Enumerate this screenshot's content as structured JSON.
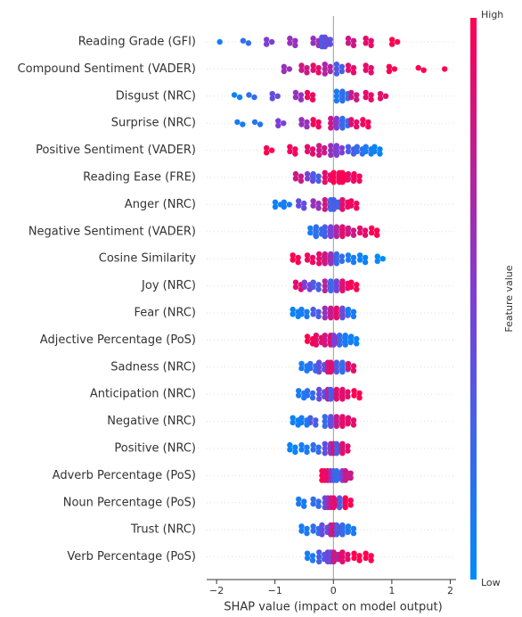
{
  "chart_data": {
    "type": "beeswarm",
    "xlabel": "SHAP value (impact on model output)",
    "colorbar_label": "Feature value",
    "colorbar_high": "High",
    "colorbar_low": "Low",
    "low_color": "#008bfb",
    "mid_color": "#7c3fd6",
    "high_color": "#ff0051",
    "xlim": [
      -2.17,
      2.1
    ],
    "xticks": [
      {
        "value": -2,
        "label": "−2"
      },
      {
        "value": -1,
        "label": "−1"
      },
      0,
      1,
      2
    ],
    "series": [
      {
        "name": "Reading Grade (GFI)",
        "values": [
          -1.9,
          -1.5,
          -1.1,
          -0.7,
          -0.3,
          -0.15,
          -0.1,
          0.3,
          0.6,
          1.05
        ],
        "color_values": [
          0.1,
          0.2,
          0.5,
          0.6,
          0.6,
          0.3,
          0.4,
          0.8,
          0.9,
          1
        ]
      },
      {
        "name": "Compound Sentiment (VADER)",
        "values": [
          -0.8,
          -0.5,
          -0.3,
          -0.1,
          0.1,
          0.3,
          0.6,
          1.0,
          1.5,
          1.95
        ],
        "color_values": [
          0.6,
          0.8,
          0.9,
          0.7,
          0.3,
          0.9,
          0.9,
          1,
          1,
          1
        ]
      },
      {
        "name": "Disgust (NRC)",
        "values": [
          -1.65,
          -1.4,
          -1.0,
          -0.6,
          -0.4,
          0.1,
          0.2,
          0.35,
          0.6,
          0.85
        ],
        "color_values": [
          0.05,
          0.2,
          0.4,
          0.6,
          0.95,
          0.1,
          0.2,
          0.8,
          0.9,
          0.9
        ]
      },
      {
        "name": "Surprise (NRC)",
        "values": [
          -1.6,
          -1.3,
          -0.9,
          -0.5,
          -0.3,
          0.0,
          0.1,
          0.2,
          0.35,
          0.55
        ],
        "color_values": [
          0.1,
          0.15,
          0.5,
          0.6,
          0.95,
          0.8,
          0.5,
          0.2,
          0.9,
          0.95
        ]
      },
      {
        "name": "Positive Sentiment (VADER)",
        "values": [
          -1.1,
          -0.7,
          -0.4,
          -0.2,
          0,
          0.1,
          0.3,
          0.45,
          0.6,
          0.75
        ],
        "color_values": [
          1,
          0.95,
          0.9,
          0.8,
          0.6,
          0.5,
          0.3,
          0.2,
          0.1,
          0.05
        ]
      },
      {
        "name": "Reading Ease (FRE)",
        "values": [
          -0.6,
          -0.4,
          -0.3,
          -0.1,
          0.05,
          0.15,
          0.2,
          0.3,
          0.4
        ],
        "color_values": [
          0.8,
          0.5,
          0.3,
          0.9,
          1,
          0.95,
          1,
          0.9,
          0.95
        ]
      },
      {
        "name": "Anger (NRC)",
        "values": [
          -0.95,
          -0.8,
          -0.55,
          -0.3,
          -0.1,
          0,
          0.05,
          0.2,
          0.35
        ],
        "color_values": [
          0.05,
          0.1,
          0.4,
          0.6,
          0.8,
          0.2,
          0.3,
          0.9,
          0.95
        ]
      },
      {
        "name": "Negative Sentiment (VADER)",
        "values": [
          -0.35,
          -0.25,
          -0.1,
          0,
          0.1,
          0.2,
          0.3,
          0.5,
          0.7
        ],
        "color_values": [
          0.1,
          0.2,
          0.3,
          0.5,
          0.7,
          0.9,
          0.8,
          0.9,
          1
        ]
      },
      {
        "name": "Cosine Similarity",
        "values": [
          -0.65,
          -0.4,
          -0.2,
          -0.1,
          0,
          0.1,
          0.3,
          0.5,
          0.8
        ],
        "color_values": [
          1,
          0.95,
          0.9,
          0.8,
          0.6,
          0.2,
          0.1,
          0.05,
          0
        ]
      },
      {
        "name": "Joy (NRC)",
        "values": [
          -0.6,
          -0.45,
          -0.3,
          -0.1,
          0,
          0.1,
          0.2,
          0.35
        ],
        "color_values": [
          0.9,
          0.5,
          0.3,
          0.7,
          0.2,
          0.5,
          0.9,
          1
        ]
      },
      {
        "name": "Fear (NRC)",
        "values": [
          -0.65,
          -0.5,
          -0.3,
          -0.1,
          0,
          0.1,
          0.2,
          0.3
        ],
        "color_values": [
          0.05,
          0.1,
          0.3,
          0.6,
          0.8,
          0.9,
          0.4,
          0.1
        ]
      },
      {
        "name": "Adjective Percentage (PoS)",
        "values": [
          -0.4,
          -0.25,
          -0.1,
          0,
          0.05,
          0.15,
          0.25,
          0.35
        ],
        "color_values": [
          1,
          0.9,
          0.8,
          0.9,
          0.5,
          0.2,
          0.1,
          0.05
        ]
      },
      {
        "name": "Sadness (NRC)",
        "values": [
          -0.5,
          -0.35,
          -0.2,
          -0.05,
          0,
          0.1,
          0.2,
          0.3
        ],
        "color_values": [
          0.1,
          0.2,
          0.4,
          0.8,
          0.9,
          0.3,
          0.2,
          0.9
        ]
      },
      {
        "name": "Anticipation (NRC)",
        "values": [
          -0.55,
          -0.4,
          -0.2,
          -0.05,
          0,
          0.1,
          0.2,
          0.4
        ],
        "color_values": [
          0.1,
          0.2,
          0.4,
          0.7,
          0.3,
          0.9,
          0.9,
          1
        ]
      },
      {
        "name": "Negative (NRC)",
        "values": [
          -0.65,
          -0.5,
          -0.35,
          -0.1,
          0,
          0.1,
          0.2,
          0.3
        ],
        "color_values": [
          0.05,
          0.1,
          0.3,
          0.2,
          0.4,
          0.8,
          0.9,
          0.9
        ]
      },
      {
        "name": "Positive (NRC)",
        "values": [
          -0.7,
          -0.5,
          -0.3,
          -0.1,
          0,
          0.05,
          0.1,
          0.2
        ],
        "color_values": [
          0.05,
          0.1,
          0.2,
          0.4,
          0.6,
          0.9,
          0.3,
          0.9
        ]
      },
      {
        "name": "Adverb Percentage (PoS)",
        "values": [
          -0.15,
          -0.1,
          -0.05,
          0,
          0.05,
          0.1,
          0.2,
          0.25
        ],
        "color_values": [
          1,
          0.9,
          0.95,
          0.6,
          0.3,
          0.2,
          0.5,
          0.8
        ]
      },
      {
        "name": "Noun Percentage (PoS)",
        "values": [
          -0.55,
          -0.3,
          -0.1,
          -0.05,
          0,
          0.05,
          0.15,
          0.25
        ],
        "color_values": [
          0.1,
          0.2,
          0.4,
          0.6,
          0.8,
          0.9,
          0.3,
          1
        ]
      },
      {
        "name": "Trust (NRC)",
        "values": [
          -0.5,
          -0.3,
          -0.15,
          0,
          0.05,
          0.1,
          0.2,
          0.3
        ],
        "color_values": [
          0.1,
          0.2,
          0.4,
          0.7,
          0.9,
          0.3,
          0.2,
          0.1
        ]
      },
      {
        "name": "Verb Percentage (PoS)",
        "values": [
          -0.4,
          -0.2,
          -0.05,
          0,
          0.05,
          0.2,
          0.4,
          0.6
        ],
        "color_values": [
          0.1,
          0.3,
          0.5,
          0.4,
          0.8,
          0.9,
          1,
          1
        ]
      }
    ]
  }
}
